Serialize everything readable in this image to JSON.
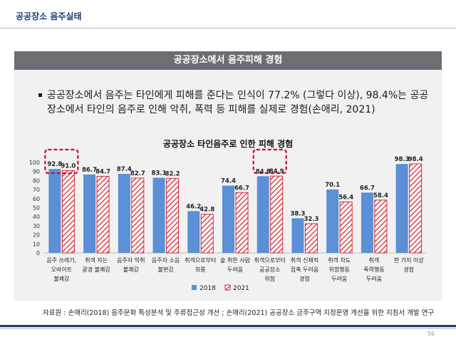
{
  "header": {
    "title": "공공장소 음주실태"
  },
  "banner": {
    "title": "공공장소에서 음주피해 경험"
  },
  "bullet": {
    "text": "공공장소에서 음주는 타인에게 피해를 준다는 인식이 77.2% (그렇다 이상), 98.4%는 공공장소에서 타인의 음주로 인해 악취, 폭력 등 피해를 실제로 경험(손애리, 2021)"
  },
  "colors": {
    "series2018": "#5b8fd6",
    "series2021": "#d42a35",
    "highlight": "#c8102e",
    "banner": "#6d6e73",
    "panel": "#f1f1f2"
  },
  "chart_data": {
    "type": "bar",
    "title": "공공장소 타인음주로 인한 피해 경험",
    "categories": [
      [
        "음주 쓰레기,",
        "오바이트",
        "불쾌감"
      ],
      [
        "취객 자는",
        "광경 불쾌감"
      ],
      [
        "음주자 악취",
        "불쾌감"
      ],
      [
        "음주자 소음",
        "불편감"
      ],
      [
        "취객으로부터",
        "희롱"
      ],
      [
        "술 취한 사람",
        "두려움"
      ],
      [
        "취객으로부터",
        "공공장소",
        "위험"
      ],
      [
        "취객 신체적",
        "접촉 두려움",
        "경험"
      ],
      [
        "취객 차도",
        "위험행동",
        "두려움"
      ],
      [
        "취객",
        "폭력행동",
        "두려움"
      ],
      [
        "한 가지 이상",
        "경험"
      ]
    ],
    "series": [
      {
        "name": "2018",
        "pattern": "solid",
        "values": [
          92.8,
          86.7,
          87.4,
          83.1,
          46.2,
          74.4,
          84.8,
          38.3,
          70.1,
          66.7,
          98.3
        ]
      },
      {
        "name": "2021",
        "pattern": "hatched",
        "values": [
          91.0,
          84.7,
          82.7,
          82.2,
          42.8,
          66.7,
          84.9,
          32.3,
          56.4,
          58.4,
          98.4
        ]
      }
    ],
    "ylim": [
      0,
      100
    ],
    "yticks": [
      0,
      10,
      20,
      30,
      40,
      50,
      60,
      70,
      80,
      90,
      100
    ],
    "legend_position": "bottom-center",
    "highlighted_categories": [
      0,
      6
    ]
  },
  "source": {
    "text": "자료원 : 손애리(2018) 음주문화 특성분석 및 주류접근성 개선 ; 손애리(2021) 공공장소 금주구역 지정운영 개선을 위한 지침서 개발 연구"
  },
  "footer": {
    "page_number": "56"
  }
}
